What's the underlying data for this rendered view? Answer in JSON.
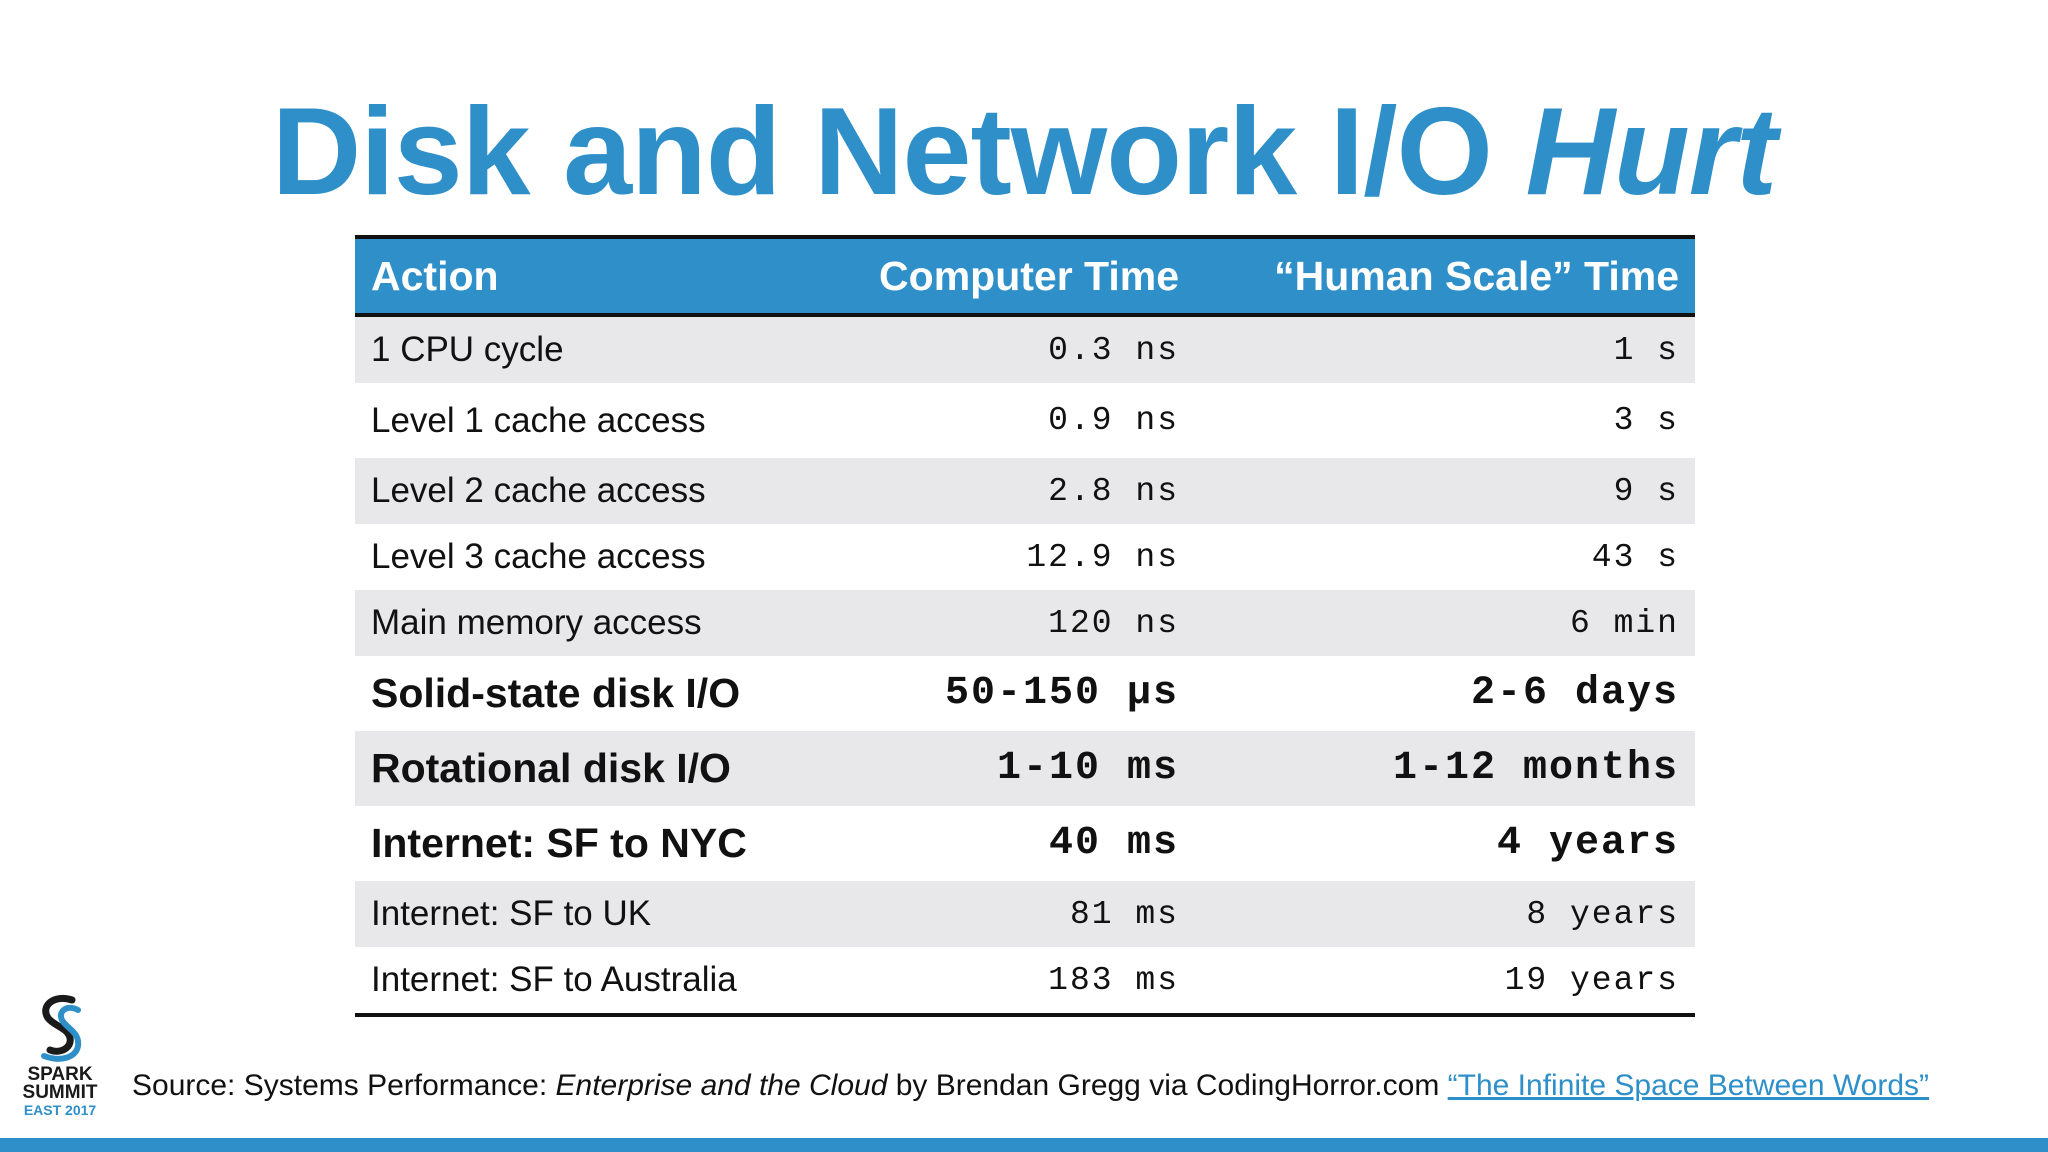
{
  "title": {
    "main": "Disk and Network I/O ",
    "emphasis": "Hurt"
  },
  "colors": {
    "accent": "#2e8fc9",
    "row_shade": "#e8e8ea",
    "text": "#111111"
  },
  "table": {
    "headers": {
      "action": "Action",
      "computer_time": "Computer Time",
      "human_time": "“Human Scale” Time"
    },
    "rows": [
      {
        "action": "1 CPU cycle",
        "computer": "0.3 ns",
        "human": "1 s"
      },
      {
        "action": "Level 1 cache access",
        "computer": "0.9 ns",
        "human": "3 s"
      },
      {
        "action": "Level 2 cache access",
        "computer": "2.8 ns",
        "human": "9 s"
      },
      {
        "action": "Level 3 cache access",
        "computer": "12.9 ns",
        "human": "43 s"
      },
      {
        "action": "Main memory access",
        "computer": "120 ns",
        "human": "6 min"
      },
      {
        "action": "Solid-state disk I/O",
        "computer": "50-150 μs",
        "human": "2-6 days"
      },
      {
        "action": "Rotational disk I/O",
        "computer": "1-10 ms",
        "human": "1-12 months"
      },
      {
        "action": "Internet: SF to NYC",
        "computer": "40 ms",
        "human": "4 years"
      },
      {
        "action": "Internet: SF to UK",
        "computer": "81 ms",
        "human": "8 years"
      },
      {
        "action": "Internet: SF to Australia",
        "computer": "183 ms",
        "human": "19 years"
      }
    ]
  },
  "source": {
    "prefix": "Source: Systems Performance: ",
    "book_title": "Enterprise and the Cloud",
    "middle": " by Brendan Gregg via CodingHorror.com ",
    "link_text": "“The Infinite Space Between Words”"
  },
  "logo": {
    "icon": "spark-summit-logo-icon",
    "line1": "SPARK",
    "line2": "SUMMIT",
    "line3": "EAST 2017"
  }
}
